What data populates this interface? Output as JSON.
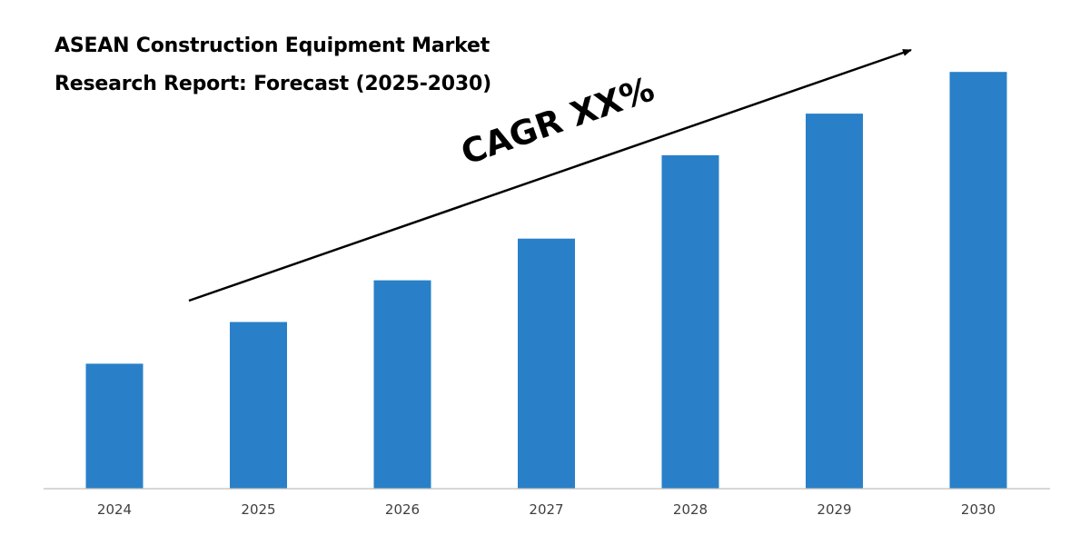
{
  "chart_data": {
    "type": "bar",
    "title_lines": [
      "ASEAN Construction Equipment Market",
      "Research Report: Forecast (2025-2030)"
    ],
    "annotation": "CAGR XX%",
    "categories": [
      "2024",
      "2025",
      "2026",
      "2027",
      "2028",
      "2029",
      "2030"
    ],
    "values": [
      3,
      4,
      5,
      6,
      8,
      9,
      10
    ],
    "ylim": [
      0,
      10.2
    ],
    "grid": false,
    "legend": "none",
    "bar_color": "#2980c8",
    "axis_color": "#bfbfbf",
    "tick_label_color": "#404040",
    "text_color": "#000000"
  }
}
